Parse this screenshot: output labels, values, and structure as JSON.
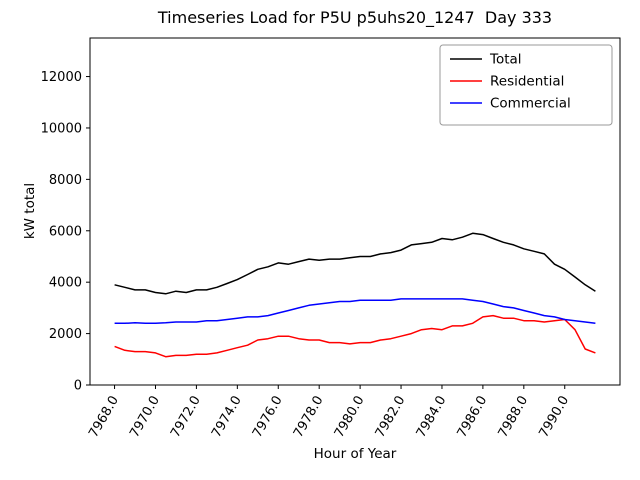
{
  "chart_data": {
    "type": "line",
    "title": "Timeseries Load for P5U p5uhs20_1247  Day 333",
    "xlabel": "Hour of Year",
    "ylabel": "kW total",
    "xlim": [
      7966.8,
      7992.7
    ],
    "ylim": [
      0,
      13500
    ],
    "grid": false,
    "legend_position": "upper right",
    "x_ticks": [
      7968,
      7970,
      7972,
      7974,
      7976,
      7978,
      7980,
      7982,
      7984,
      7986,
      7988,
      7990
    ],
    "x_tick_labels": [
      "7968.0",
      "7970.0",
      "7972.0",
      "7974.0",
      "7976.0",
      "7978.0",
      "7980.0",
      "7982.0",
      "7984.0",
      "7986.0",
      "7988.0",
      "7990.0"
    ],
    "y_ticks": [
      0,
      2000,
      4000,
      6000,
      8000,
      10000,
      12000
    ],
    "y_tick_labels": [
      "0",
      "2000",
      "4000",
      "6000",
      "8000",
      "10000",
      "12000"
    ],
    "x": [
      7968.0,
      7968.5,
      7969.0,
      7969.5,
      7970.0,
      7970.5,
      7971.0,
      7971.5,
      7972.0,
      7972.5,
      7973.0,
      7973.5,
      7974.0,
      7974.5,
      7975.0,
      7975.5,
      7976.0,
      7976.5,
      7977.0,
      7977.5,
      7978.0,
      7978.5,
      7979.0,
      7979.5,
      7980.0,
      7980.5,
      7981.0,
      7981.5,
      7982.0,
      7982.5,
      7983.0,
      7983.5,
      7984.0,
      7984.5,
      7985.0,
      7985.5,
      7986.0,
      7986.5,
      7987.0,
      7987.5,
      7988.0,
      7988.5,
      7989.0,
      7989.5,
      7990.0,
      7990.5,
      7991.0,
      7991.5
    ],
    "series": [
      {
        "name": "Total",
        "color": "#000000",
        "values": [
          3900,
          3800,
          3700,
          3700,
          3600,
          3550,
          3650,
          3600,
          3700,
          3700,
          3800,
          3950,
          4100,
          4300,
          4500,
          4600,
          4750,
          4700,
          4800,
          4900,
          4850,
          4900,
          4900,
          4950,
          5000,
          5000,
          5100,
          5150,
          5250,
          5450,
          5500,
          5550,
          5700,
          5650,
          5750,
          5900,
          5850,
          5700,
          5550,
          5450,
          5300,
          5200,
          5100,
          4700,
          4500,
          4200,
          3900,
          3650
        ]
      },
      {
        "name": "Residential",
        "color": "#ff0000",
        "values": [
          1500,
          1350,
          1300,
          1300,
          1250,
          1100,
          1150,
          1150,
          1200,
          1200,
          1250,
          1350,
          1450,
          1550,
          1750,
          1800,
          1900,
          1900,
          1800,
          1750,
          1750,
          1650,
          1650,
          1600,
          1650,
          1650,
          1750,
          1800,
          1900,
          2000,
          2150,
          2200,
          2150,
          2300,
          2300,
          2400,
          2650,
          2700,
          2600,
          2600,
          2500,
          2500,
          2450,
          2500,
          2550,
          2150,
          1400,
          1250
        ]
      },
      {
        "name": "Commercial",
        "color": "#0000ff",
        "values": [
          2400,
          2400,
          2420,
          2400,
          2400,
          2420,
          2450,
          2450,
          2450,
          2500,
          2500,
          2550,
          2600,
          2650,
          2650,
          2700,
          2800,
          2900,
          3000,
          3100,
          3150,
          3200,
          3250,
          3250,
          3300,
          3300,
          3300,
          3300,
          3350,
          3350,
          3350,
          3350,
          3350,
          3350,
          3350,
          3300,
          3250,
          3150,
          3050,
          3000,
          2900,
          2800,
          2700,
          2650,
          2550,
          2500,
          2450,
          2400
        ]
      }
    ]
  }
}
